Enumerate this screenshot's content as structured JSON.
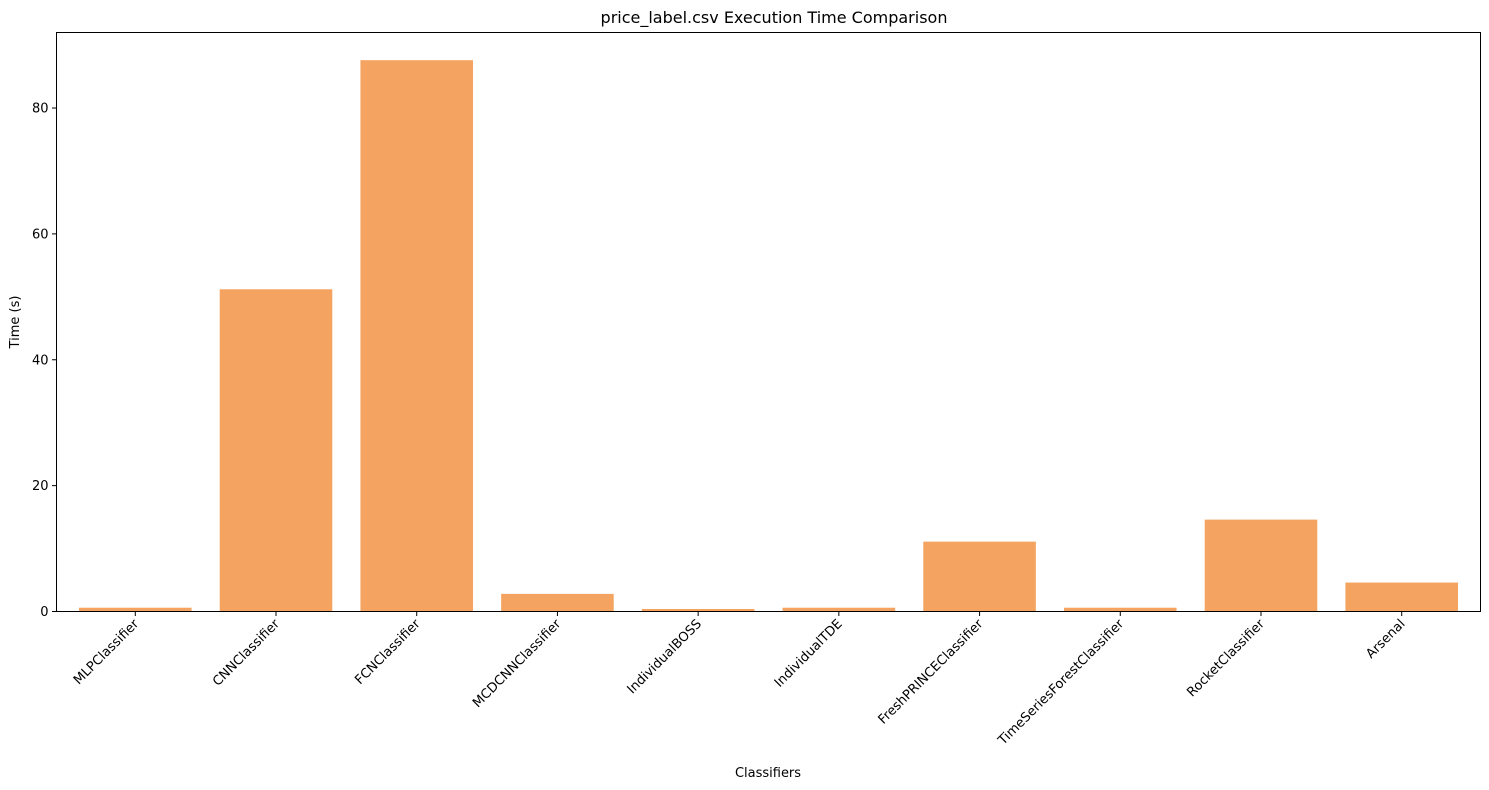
{
  "chart_data": {
    "type": "bar",
    "title": "price_label.csv Execution Time Comparison",
    "xlabel": "Classifiers",
    "ylabel": "Time (s)",
    "categories": [
      "MLPClassifier",
      "CNNClassifier",
      "FCNClassifier",
      "MCDCNNClassifier",
      "IndividualBOSS",
      "IndividualTDE",
      "FreshPRINCEClassifier",
      "TimeSeriesForestClassifier",
      "RocketClassifier",
      "Arsenal"
    ],
    "values": [
      0.6,
      51.2,
      87.6,
      2.8,
      0.4,
      0.6,
      11.1,
      0.6,
      14.6,
      4.6
    ],
    "ylim": [
      0,
      92
    ],
    "yticks": [
      0,
      20,
      40,
      60,
      80
    ],
    "grid": false,
    "legend": "none",
    "bar_color": "#f4a460"
  }
}
